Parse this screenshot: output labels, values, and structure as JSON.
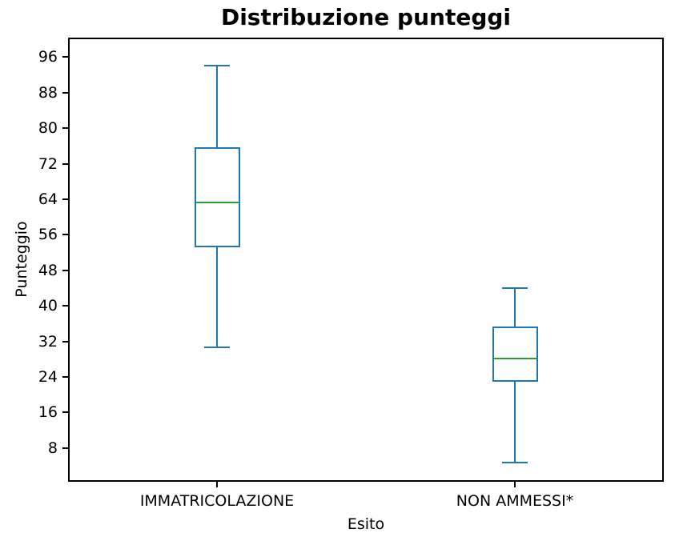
{
  "chart_data": {
    "type": "box",
    "title": "Distribuzione punteggi",
    "xlabel": "Esito",
    "ylabel": "Punteggio",
    "categories": [
      "IMMATRICOLAZIONE",
      "NON AMMESSI*"
    ],
    "x_positions": [
      1,
      2
    ],
    "series": [
      {
        "name": "IMMATRICOLAZIONE",
        "whisker_low": 30.6,
        "q1": 53.2,
        "median": 63.2,
        "q3": 75.7,
        "whisker_high": 94.1
      },
      {
        "name": "NON AMMESSI*",
        "whisker_low": 4.8,
        "q1": 22.9,
        "median": 28.1,
        "q3": 35.3,
        "whisker_high": 44.0
      }
    ],
    "y_ticks": [
      8,
      16,
      24,
      32,
      40,
      48,
      56,
      64,
      72,
      80,
      88,
      96
    ],
    "ylim": [
      0.4,
      100.4
    ],
    "xlim": [
      0.5,
      2.5
    ],
    "box_width_units": 0.153,
    "cap_width_units": 0.086,
    "grid": false,
    "legend": "none",
    "colors": {
      "box": "#1f77b4",
      "whisker": "#1f77b4",
      "cap": "#1f77b4",
      "median": "#2ca02c",
      "axis": "#000000",
      "text": "#000000",
      "background": "#ffffff"
    }
  }
}
